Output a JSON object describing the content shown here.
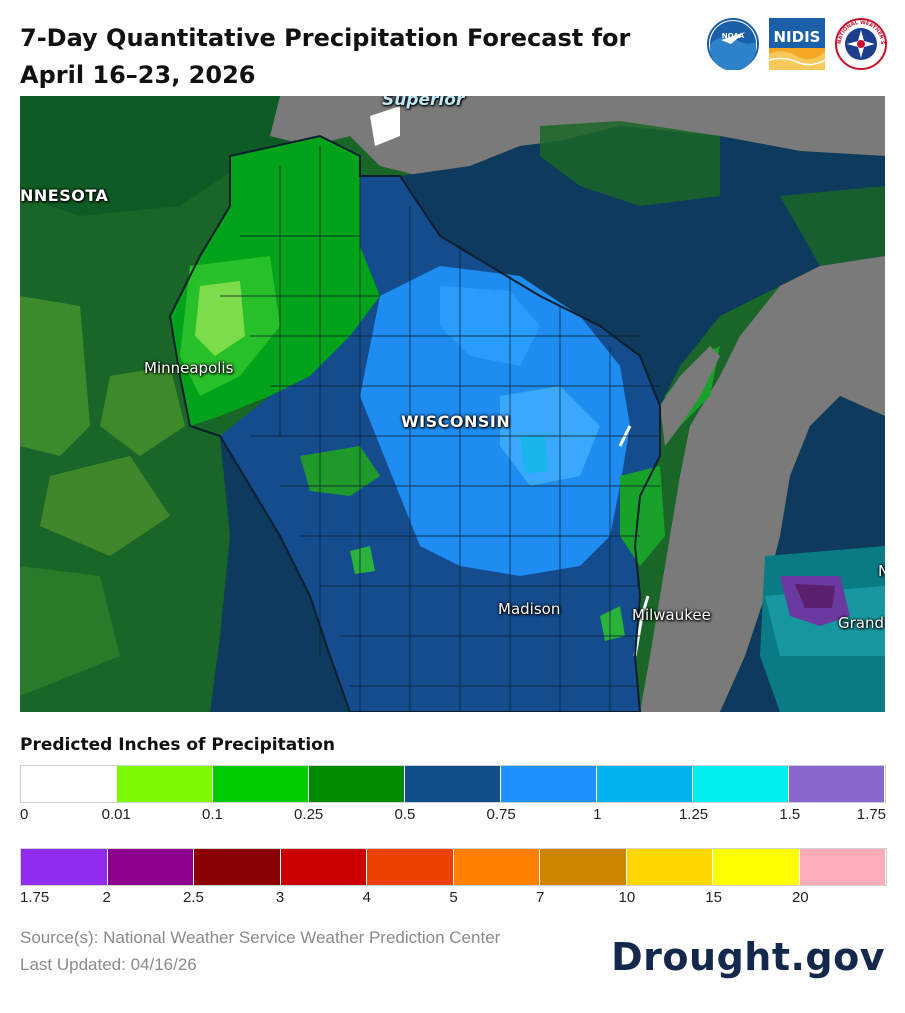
{
  "title": "7-Day Quantitative Precipitation Forecast for April 16–23, 2026",
  "logos": [
    {
      "name": "noaa-logo-icon",
      "text": "NOAA"
    },
    {
      "name": "nidis-logo-icon",
      "text": "NIDIS"
    },
    {
      "name": "nws-logo-icon",
      "text": "NATIONAL WEATHER SERVICE"
    }
  ],
  "map": {
    "labels": {
      "minnesota": "NNESOTA",
      "superior": "Superior",
      "minneapolis": "Minneapolis",
      "wisconsin": "WISCONSIN",
      "madison": "Madison",
      "milwaukee": "Milwaukee",
      "grand": "Grand",
      "edge_n": "N"
    }
  },
  "legend": {
    "title": "Predicted Inches of Precipitation",
    "row1": {
      "colors": [
        "#ffffff",
        "#7cfc00",
        "#00cd00",
        "#008b00",
        "#104e8b",
        "#1e90ff",
        "#00b2ee",
        "#00eeee",
        "#8968cd"
      ],
      "ticks": [
        "0",
        "0.01",
        "0.1",
        "0.25",
        "0.5",
        "0.75",
        "1",
        "1.25",
        "1.5",
        "1.75"
      ]
    },
    "row2": {
      "colors": [
        "#912cee",
        "#8b008b",
        "#8b0000",
        "#cd0000",
        "#ee4000",
        "#ff7f00",
        "#cd8500",
        "#ffd700",
        "#ffff00",
        "#ffaeb9"
      ],
      "ticks": [
        "1.75",
        "2",
        "2.5",
        "3",
        "4",
        "5",
        "7",
        "10",
        "15",
        "20"
      ]
    }
  },
  "footer": {
    "source": "Source(s): National Weather Service Weather Prediction Center",
    "updated": "Last Updated: 04/16/26",
    "brand": "Drought.gov"
  }
}
